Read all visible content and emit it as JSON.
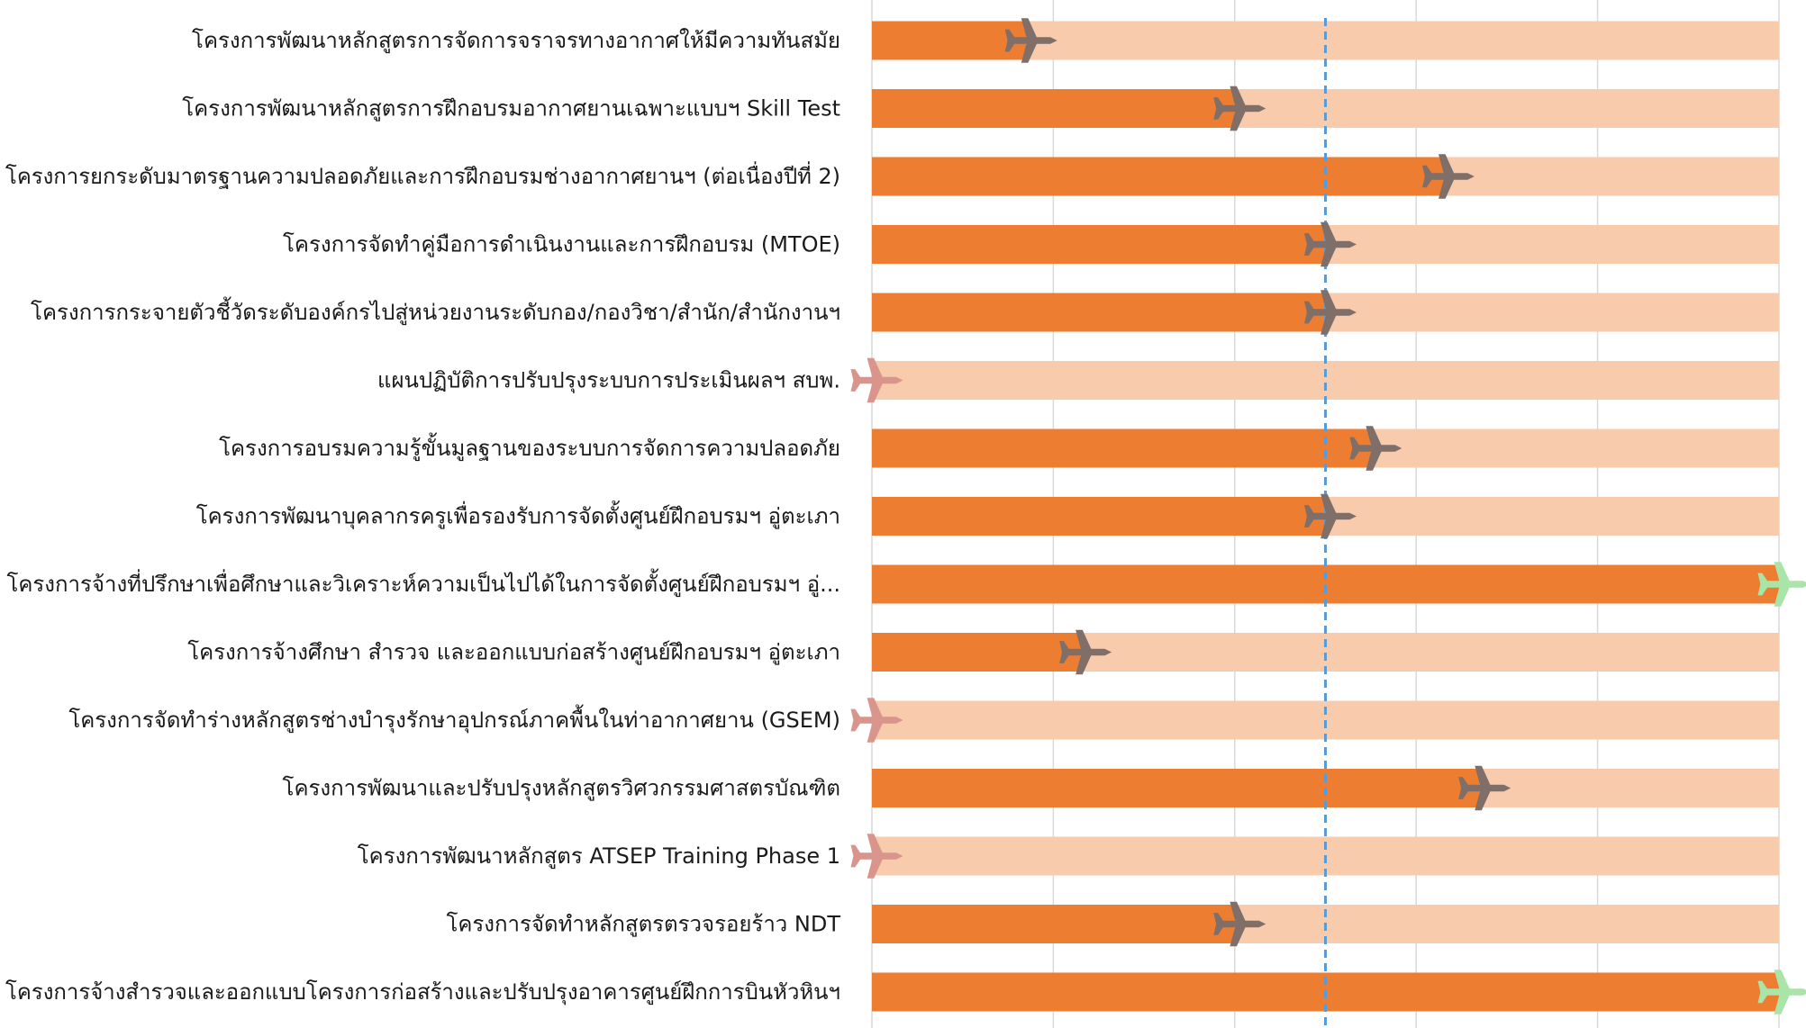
{
  "chart_data": {
    "type": "bar",
    "orientation": "horizontal",
    "title": "",
    "xlabel": "",
    "ylabel": "",
    "xlim": [
      0,
      100
    ],
    "grid": true,
    "legend": "none",
    "current_progress_marker": 50,
    "categories": [
      "โครงการพัฒนาหลักสูตรการจัดการจราจรทางอากาศให้มีความทันสมัย",
      "โครงการพัฒนาหลักสูตรการฝึกอบรมอากาศยานเฉพาะแบบฯ Skill Test",
      "โครงการยกระดับมาตรฐานความปลอดภัยและการฝึกอบรมช่างอากาศยานฯ (ต่อเนื่องปีที่ 2)",
      "โครงการจัดทำคู่มือการดำเนินงานและการฝึกอบรม (MTOE)",
      "โครงการกระจายตัวชี้วัดระดับองค์กรไปสู่หน่วยงานระดับกอง/กองวิชา/สำนัก/สำนักงานฯ",
      "แผนปฏิบัติการปรับปรุงระบบการประเมินผลฯ สบพ.",
      "โครงการอบรมความรู้ขั้นมูลฐานของระบบการจัดการความปลอดภัย",
      "โครงการพัฒนาบุคลากรครูเพื่อรองรับการจัดตั้งศูนย์ฝึกอบรมฯ อู่ตะเภา",
      "โครงการจ้างที่ปรึกษาเพื่อศึกษาและวิเคราะห์ความเป็นไปได้ในการจัดตั้งศูนย์ฝึกอบรมฯ อู่...",
      "โครงการจ้างศึกษา สำรวจ และออกแบบก่อสร้างศูนย์ฝึกอบรมฯ อู่ตะเภา",
      "โครงการจัดทำร่างหลักสูตรช่างบำรุงรักษาอุปกรณ์ภาคพื้นในท่าอากาศยาน (GSEM)",
      "โครงการพัฒนาและปรับปรุงหลักสูตรวิศวกรรมศาสตรบัณฑิต",
      "โครงการพัฒนาหลักสูตร ATSEP Training Phase 1",
      "โครงการจัดทำหลักสูตรตรวจรอยร้าว NDT",
      "โครงการจ้างสำรวจและออกแบบโครงการก่อสร้างและปรับปรุงอาคารศูนย์ฝึกการบินหัวหินฯ"
    ],
    "series": [
      {
        "values": [
          17,
          40,
          63,
          50,
          50,
          0,
          55,
          50,
          100,
          23,
          0,
          67,
          0,
          40,
          100
        ]
      }
    ],
    "colors": {
      "progress": "#ED7D31",
      "remaining": "#F8CBAD",
      "grid": "#D9D9D9",
      "marker_line": "#5B9BD5",
      "plane_in_progress": "#7F6F68",
      "plane_not_started": "#D9948C",
      "plane_complete": "#A9E4A9"
    }
  }
}
